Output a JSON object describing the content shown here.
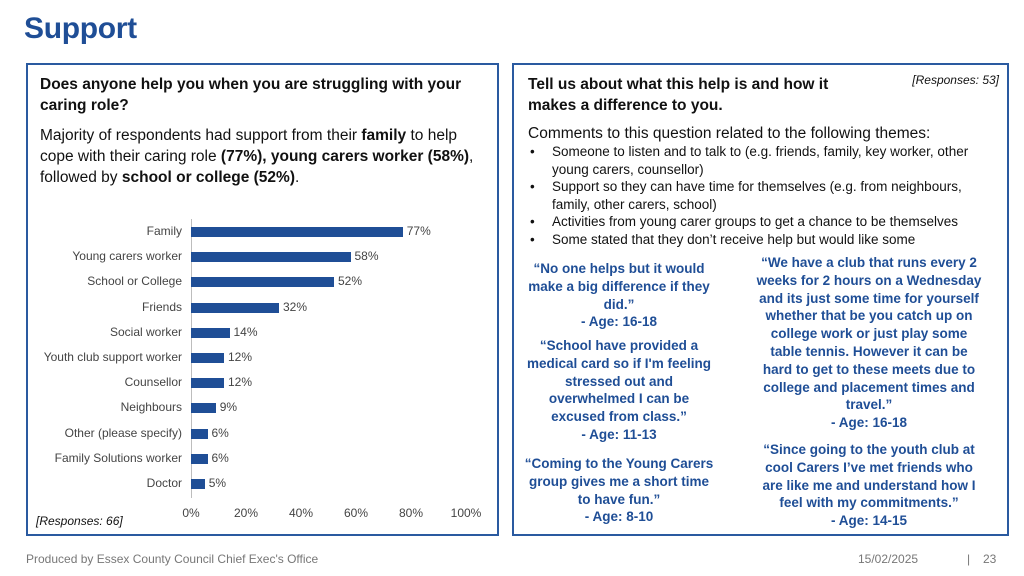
{
  "page": {
    "title": "Support",
    "footer_left": "Produced by Essex County Council Chief Exec's Office",
    "footer_date": "15/02/2025",
    "footer_sep": "|",
    "footer_page": "23"
  },
  "left": {
    "question": "Does anyone help you when you are struggling with your caring role?",
    "summary": {
      "p1": "Majority of respondents had support from their ",
      "b1": "family",
      "p2": " to help cope with their caring role ",
      "b2": "(77%), young carers worker (58%)",
      "p3": ", followed by ",
      "b3": "school or college (52%)",
      "p4": "."
    },
    "responses": "[Responses: 66]"
  },
  "chart_data": {
    "type": "bar",
    "orientation": "horizontal",
    "categories": [
      "Family",
      "Young carers worker",
      "School or College",
      "Friends",
      "Social worker",
      "Youth club support worker",
      "Counsellor",
      "Neighbours",
      "Other (please specify)",
      "Family Solutions worker",
      "Doctor"
    ],
    "values": [
      77,
      58,
      52,
      32,
      14,
      12,
      12,
      9,
      6,
      6,
      5
    ],
    "labels": [
      "77%",
      "58%",
      "52%",
      "32%",
      "14%",
      "12%",
      "12%",
      "9%",
      "6%",
      "6%",
      "5%"
    ],
    "xticks": [
      "0%",
      "20%",
      "40%",
      "60%",
      "80%",
      "100%"
    ],
    "xlim": [
      0,
      100
    ],
    "color": "#1f4e96"
  },
  "right": {
    "question": "Tell us about what this help is and how it makes a difference to you.",
    "responses": "[Responses: 53]",
    "intro": "Comments to this question related to the following themes:",
    "themes": [
      "Someone to listen and to talk to (e.g. friends, family, key worker, other young carers, counsellor)",
      "Support so they can have time for themselves (e.g. from neighbours, family, other carers, school)",
      "Activities from young carer groups to get a chance to be themselves",
      "Some stated that they don’t receive help but would like some"
    ],
    "quotes": [
      "“No one helps but it would make a big difference if they did.”\n- Age: 16-18",
      "“School have provided a medical card so if I'm feeling stressed out and overwhelmed I can be excused from class.”\n- Age: 11-13",
      "“Coming to the Young Carers group gives me a short time to have fun.”\n- Age: 8-10",
      "“We have a club that runs every 2 weeks for 2 hours on a Wednesday and its just some time for yourself whether that be you catch up on college work or just play some table tennis. However it can be hard to get to these meets due to college and placement times and travel.”\n- Age: 16-18",
      "“Since going to the youth club at cool Carers I’ve met friends who are like me and understand how I feel with my commitments.”\n- Age: 14-15"
    ]
  }
}
